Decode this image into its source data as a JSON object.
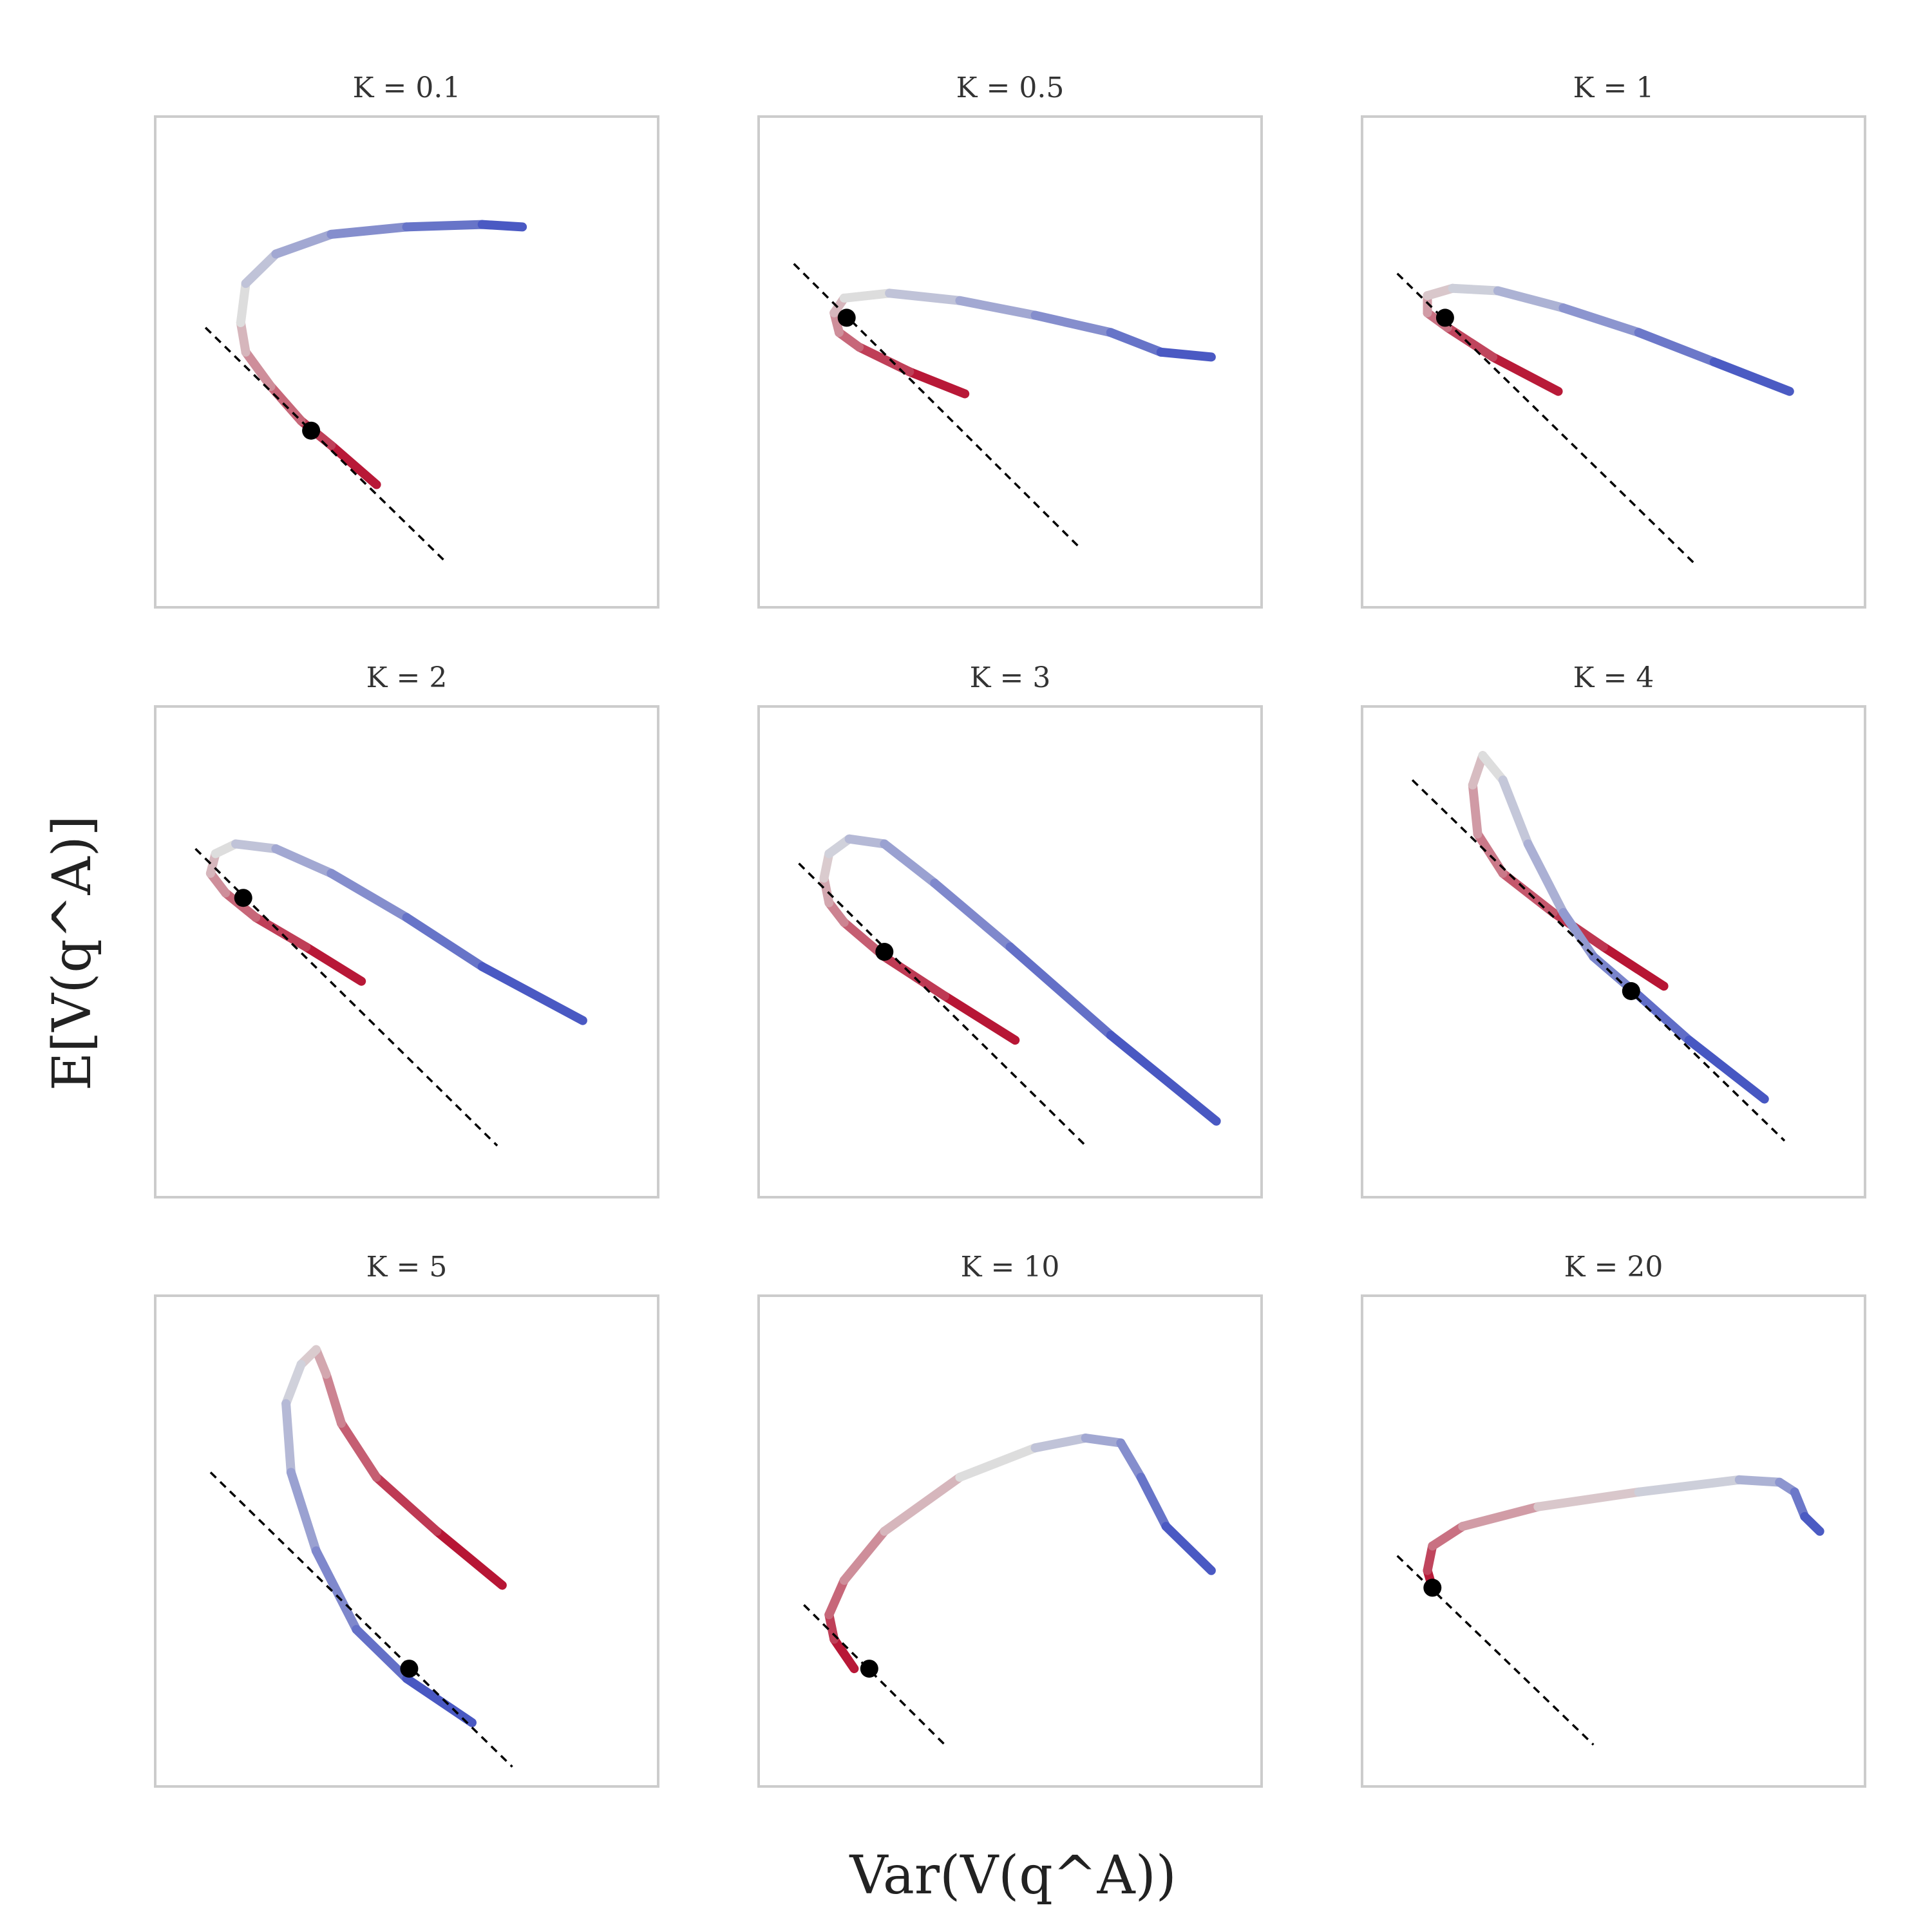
{
  "figure": {
    "xlabel": "Var(V(q^A))",
    "ylabel": "E[V(q^A)]",
    "colormap": {
      "name": "coolwarm",
      "start_color": "#b40426",
      "mid_color": "#dddddd",
      "end_color": "#3b4cc0"
    },
    "tangent_color": "#000000",
    "point_color": "#000000",
    "frame_color": "#cccccc"
  },
  "chart_data": [
    {
      "type": "line",
      "title": "K = 0.1",
      "xlim": [
        0,
        1
      ],
      "ylim": [
        0,
        1
      ],
      "curve": [
        [
          0.44,
          0.25
        ],
        [
          0.35,
          0.33
        ],
        [
          0.29,
          0.38
        ],
        [
          0.23,
          0.45
        ],
        [
          0.18,
          0.52
        ],
        [
          0.17,
          0.58
        ],
        [
          0.18,
          0.66
        ],
        [
          0.24,
          0.72
        ],
        [
          0.35,
          0.76
        ],
        [
          0.5,
          0.775
        ],
        [
          0.65,
          0.78
        ],
        [
          0.73,
          0.775
        ]
      ],
      "tangent": [
        [
          0.1,
          0.57
        ],
        [
          0.58,
          0.09
        ]
      ],
      "point": [
        0.31,
        0.36
      ]
    },
    {
      "type": "line",
      "title": "K = 0.5",
      "xlim": [
        0,
        1
      ],
      "ylim": [
        0,
        1
      ],
      "curve": [
        [
          0.41,
          0.435
        ],
        [
          0.3,
          0.48
        ],
        [
          0.2,
          0.53
        ],
        [
          0.16,
          0.56
        ],
        [
          0.15,
          0.6
        ],
        [
          0.17,
          0.63
        ],
        [
          0.26,
          0.64
        ],
        [
          0.4,
          0.625
        ],
        [
          0.55,
          0.595
        ],
        [
          0.7,
          0.56
        ],
        [
          0.8,
          0.52
        ],
        [
          0.9,
          0.51
        ]
      ],
      "tangent": [
        [
          0.07,
          0.7
        ],
        [
          0.64,
          0.12
        ]
      ],
      "point": [
        0.175,
        0.59
      ]
    },
    {
      "type": "line",
      "title": "K = 1",
      "xlim": [
        0,
        1
      ],
      "ylim": [
        0,
        1
      ],
      "curve": [
        [
          0.39,
          0.44
        ],
        [
          0.26,
          0.51
        ],
        [
          0.17,
          0.57
        ],
        [
          0.13,
          0.6
        ],
        [
          0.13,
          0.635
        ],
        [
          0.18,
          0.65
        ],
        [
          0.27,
          0.645
        ],
        [
          0.4,
          0.61
        ],
        [
          0.55,
          0.56
        ],
        [
          0.7,
          0.5
        ],
        [
          0.85,
          0.44
        ]
      ],
      "tangent": [
        [
          0.07,
          0.68
        ],
        [
          0.66,
          0.09
        ]
      ],
      "point": [
        0.165,
        0.59
      ]
    },
    {
      "type": "line",
      "title": "K = 2",
      "xlim": [
        0,
        1
      ],
      "ylim": [
        0,
        1
      ],
      "curve": [
        [
          0.41,
          0.44
        ],
        [
          0.3,
          0.51
        ],
        [
          0.2,
          0.57
        ],
        [
          0.14,
          0.62
        ],
        [
          0.11,
          0.66
        ],
        [
          0.12,
          0.7
        ],
        [
          0.16,
          0.72
        ],
        [
          0.24,
          0.71
        ],
        [
          0.35,
          0.66
        ],
        [
          0.5,
          0.57
        ],
        [
          0.65,
          0.47
        ],
        [
          0.85,
          0.36
        ]
      ],
      "tangent": [
        [
          0.08,
          0.71
        ],
        [
          0.68,
          0.105
        ]
      ],
      "point": [
        0.175,
        0.61
      ]
    },
    {
      "type": "line",
      "title": "K = 3",
      "xlim": [
        0,
        1
      ],
      "ylim": [
        0,
        1
      ],
      "curve": [
        [
          0.51,
          0.32
        ],
        [
          0.37,
          0.41
        ],
        [
          0.25,
          0.49
        ],
        [
          0.17,
          0.56
        ],
        [
          0.14,
          0.6
        ],
        [
          0.13,
          0.65
        ],
        [
          0.14,
          0.7
        ],
        [
          0.18,
          0.73
        ],
        [
          0.25,
          0.72
        ],
        [
          0.35,
          0.64
        ],
        [
          0.5,
          0.51
        ],
        [
          0.7,
          0.33
        ],
        [
          0.91,
          0.155
        ]
      ],
      "tangent": [
        [
          0.08,
          0.68
        ],
        [
          0.65,
          0.105
        ]
      ],
      "point": [
        0.25,
        0.5
      ]
    },
    {
      "type": "line",
      "title": "K = 4",
      "xlim": [
        0,
        1
      ],
      "ylim": [
        0,
        1
      ],
      "curve": [
        [
          0.6,
          0.43
        ],
        [
          0.48,
          0.51
        ],
        [
          0.38,
          0.58
        ],
        [
          0.28,
          0.66
        ],
        [
          0.23,
          0.74
        ],
        [
          0.22,
          0.84
        ],
        [
          0.24,
          0.9
        ],
        [
          0.28,
          0.85
        ],
        [
          0.33,
          0.72
        ],
        [
          0.4,
          0.58
        ],
        [
          0.46,
          0.49
        ],
        [
          0.54,
          0.42
        ],
        [
          0.65,
          0.32
        ],
        [
          0.8,
          0.2
        ]
      ],
      "tangent": [
        [
          0.1,
          0.85
        ],
        [
          0.84,
          0.115
        ]
      ],
      "point": [
        0.535,
        0.42
      ]
    },
    {
      "type": "line",
      "title": "K = 5",
      "xlim": [
        0,
        1
      ],
      "ylim": [
        0,
        1
      ],
      "curve": [
        [
          0.69,
          0.41
        ],
        [
          0.56,
          0.52
        ],
        [
          0.44,
          0.63
        ],
        [
          0.37,
          0.74
        ],
        [
          0.34,
          0.84
        ],
        [
          0.32,
          0.89
        ],
        [
          0.29,
          0.86
        ],
        [
          0.26,
          0.78
        ],
        [
          0.27,
          0.64
        ],
        [
          0.32,
          0.48
        ],
        [
          0.4,
          0.32
        ],
        [
          0.5,
          0.22
        ],
        [
          0.63,
          0.13
        ]
      ],
      "tangent": [
        [
          0.11,
          0.64
        ],
        [
          0.71,
          0.04
        ]
      ],
      "point": [
        0.505,
        0.24
      ]
    },
    {
      "type": "line",
      "title": "K = 10",
      "xlim": [
        0,
        1
      ],
      "ylim": [
        0,
        1
      ],
      "curve": [
        [
          0.19,
          0.24
        ],
        [
          0.15,
          0.3
        ],
        [
          0.14,
          0.35
        ],
        [
          0.17,
          0.42
        ],
        [
          0.25,
          0.52
        ],
        [
          0.4,
          0.63
        ],
        [
          0.55,
          0.69
        ],
        [
          0.65,
          0.71
        ],
        [
          0.72,
          0.7
        ],
        [
          0.76,
          0.63
        ],
        [
          0.81,
          0.53
        ],
        [
          0.9,
          0.44
        ]
      ],
      "tangent": [
        [
          0.09,
          0.37
        ],
        [
          0.37,
          0.085
        ]
      ],
      "point": [
        0.22,
        0.24
      ]
    },
    {
      "type": "line",
      "title": "K = 20",
      "xlim": [
        0,
        1
      ],
      "ylim": [
        0,
        1
      ],
      "curve": [
        [
          0.14,
          0.405
        ],
        [
          0.13,
          0.44
        ],
        [
          0.14,
          0.49
        ],
        [
          0.2,
          0.53
        ],
        [
          0.35,
          0.57
        ],
        [
          0.55,
          0.6
        ],
        [
          0.75,
          0.625
        ],
        [
          0.83,
          0.62
        ],
        [
          0.86,
          0.6
        ],
        [
          0.88,
          0.55
        ],
        [
          0.91,
          0.52
        ]
      ],
      "tangent": [
        [
          0.07,
          0.47
        ],
        [
          0.46,
          0.085
        ]
      ],
      "point": [
        0.14,
        0.405
      ]
    }
  ]
}
